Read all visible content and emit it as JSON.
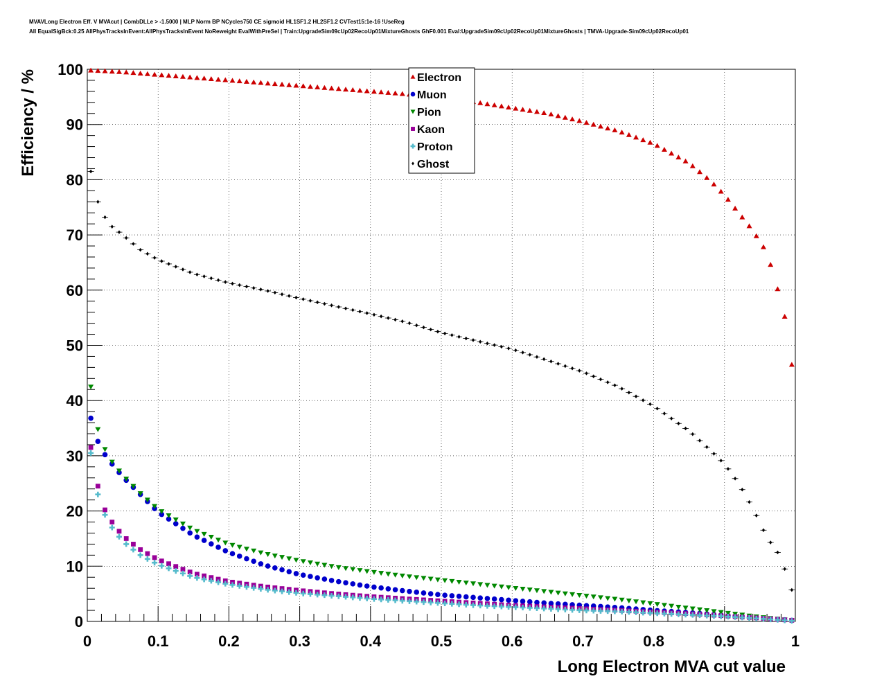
{
  "chart_data": {
    "type": "scatter",
    "title_lines": [
      "MVAVLong Electron Eff. V MVAcut | CombDLLe > -1.5000 | MLP Norm BP NCycles750 CE sigmoid HL1SF1.2 HL2SF1.2 CVTest15:1e-16 !UseReg",
      "All EqualSigBck:0.25 AllPhysTracksInEvent:AllPhysTracksInEvent NoReweight EvalWithPreSel | Train:UpgradeSim09cUp02RecoUp01MixtureGhosts GhF0.001 Eval:UpgradeSim09cUp02RecoUp01MixtureGhosts | TMVA-Upgrade-Sim09cUp02RecoUp01"
    ],
    "xlabel": "Long Electron MVA cut value",
    "ylabel": "Efficiency / %",
    "xlim": [
      0,
      1
    ],
    "ylim": [
      0,
      100
    ],
    "x_ticks": [
      "0",
      "0.1",
      "0.2",
      "0.3",
      "0.4",
      "0.5",
      "0.6",
      "0.7",
      "0.8",
      "0.9",
      "1"
    ],
    "y_ticks": [
      "0",
      "10",
      "20",
      "30",
      "40",
      "50",
      "60",
      "70",
      "80",
      "90",
      "100"
    ],
    "grid": true,
    "legend_position": "top-center",
    "x_step": 0.01,
    "series": [
      {
        "name": "Electron",
        "marker": "triangle-up",
        "color": "#cc0000",
        "anchors": [
          [
            0.005,
            99.8
          ],
          [
            0.05,
            99.5
          ],
          [
            0.1,
            99.0
          ],
          [
            0.15,
            98.5
          ],
          [
            0.2,
            98.0
          ],
          [
            0.25,
            97.5
          ],
          [
            0.3,
            97.0
          ],
          [
            0.35,
            96.5
          ],
          [
            0.4,
            96.0
          ],
          [
            0.45,
            95.5
          ],
          [
            0.5,
            94.8
          ],
          [
            0.55,
            94.0
          ],
          [
            0.6,
            93.0
          ],
          [
            0.65,
            92.0
          ],
          [
            0.7,
            90.5
          ],
          [
            0.75,
            88.8
          ],
          [
            0.8,
            86.5
          ],
          [
            0.85,
            83.0
          ],
          [
            0.88,
            79.8
          ],
          [
            0.9,
            77.2
          ],
          [
            0.92,
            74.0
          ],
          [
            0.94,
            70.8
          ],
          [
            0.96,
            66.8
          ],
          [
            0.975,
            60.2
          ],
          [
            0.985,
            55.2
          ],
          [
            0.995,
            46.5
          ]
        ]
      },
      {
        "name": "Muon",
        "marker": "circle",
        "color": "#0000cc",
        "anchors": [
          [
            0.005,
            36.8
          ],
          [
            0.015,
            32.6
          ],
          [
            0.025,
            30.2
          ],
          [
            0.035,
            28.5
          ],
          [
            0.05,
            26.2
          ],
          [
            0.075,
            23.0
          ],
          [
            0.1,
            19.8
          ],
          [
            0.15,
            15.6
          ],
          [
            0.2,
            12.5
          ],
          [
            0.25,
            10.2
          ],
          [
            0.3,
            8.5
          ],
          [
            0.35,
            7.3
          ],
          [
            0.4,
            6.3
          ],
          [
            0.45,
            5.5
          ],
          [
            0.5,
            4.8
          ],
          [
            0.55,
            4.3
          ],
          [
            0.6,
            3.8
          ],
          [
            0.65,
            3.3
          ],
          [
            0.7,
            2.9
          ],
          [
            0.75,
            2.5
          ],
          [
            0.8,
            2.0
          ],
          [
            0.85,
            1.6
          ],
          [
            0.9,
            1.1
          ],
          [
            0.95,
            0.6
          ],
          [
            0.995,
            0.2
          ]
        ]
      },
      {
        "name": "Pion",
        "marker": "triangle-down",
        "color": "#008800",
        "anchors": [
          [
            0.005,
            42.5
          ],
          [
            0.015,
            34.8
          ],
          [
            0.025,
            31.2
          ],
          [
            0.035,
            28.9
          ],
          [
            0.05,
            26.5
          ],
          [
            0.075,
            23.2
          ],
          [
            0.1,
            20.3
          ],
          [
            0.15,
            16.6
          ],
          [
            0.2,
            14.0
          ],
          [
            0.25,
            12.3
          ],
          [
            0.3,
            11.0
          ],
          [
            0.35,
            9.9
          ],
          [
            0.4,
            9.0
          ],
          [
            0.45,
            8.2
          ],
          [
            0.5,
            7.5
          ],
          [
            0.55,
            6.8
          ],
          [
            0.6,
            6.1
          ],
          [
            0.65,
            5.4
          ],
          [
            0.7,
            4.7
          ],
          [
            0.75,
            4.0
          ],
          [
            0.8,
            3.2
          ],
          [
            0.85,
            2.4
          ],
          [
            0.9,
            1.6
          ],
          [
            0.95,
            0.8
          ],
          [
            0.995,
            0.2
          ]
        ]
      },
      {
        "name": "Kaon",
        "marker": "square",
        "color": "#990099",
        "anchors": [
          [
            0.005,
            31.5
          ],
          [
            0.015,
            24.5
          ],
          [
            0.025,
            20.2
          ],
          [
            0.035,
            18.0
          ],
          [
            0.05,
            15.5
          ],
          [
            0.075,
            13.0
          ],
          [
            0.1,
            11.2
          ],
          [
            0.15,
            8.7
          ],
          [
            0.2,
            7.2
          ],
          [
            0.25,
            6.3
          ],
          [
            0.3,
            5.6
          ],
          [
            0.35,
            5.0
          ],
          [
            0.4,
            4.5
          ],
          [
            0.45,
            4.1
          ],
          [
            0.5,
            3.7
          ],
          [
            0.55,
            3.3
          ],
          [
            0.6,
            2.9
          ],
          [
            0.65,
            2.6
          ],
          [
            0.7,
            2.3
          ],
          [
            0.75,
            2.0
          ],
          [
            0.8,
            1.7
          ],
          [
            0.85,
            1.4
          ],
          [
            0.9,
            1.0
          ],
          [
            0.95,
            0.6
          ],
          [
            0.995,
            0.2
          ]
        ]
      },
      {
        "name": "Proton",
        "marker": "cross",
        "color": "#55bbcc",
        "anchors": [
          [
            0.005,
            30.5
          ],
          [
            0.015,
            23.0
          ],
          [
            0.025,
            19.3
          ],
          [
            0.035,
            17.0
          ],
          [
            0.05,
            14.5
          ],
          [
            0.075,
            12.0
          ],
          [
            0.1,
            10.3
          ],
          [
            0.15,
            8.0
          ],
          [
            0.2,
            6.7
          ],
          [
            0.25,
            5.8
          ],
          [
            0.3,
            5.1
          ],
          [
            0.35,
            4.6
          ],
          [
            0.4,
            4.1
          ],
          [
            0.45,
            3.7
          ],
          [
            0.5,
            3.3
          ],
          [
            0.55,
            2.9
          ],
          [
            0.6,
            2.6
          ],
          [
            0.65,
            2.3
          ],
          [
            0.7,
            2.0
          ],
          [
            0.75,
            1.8
          ],
          [
            0.8,
            1.5
          ],
          [
            0.85,
            1.2
          ],
          [
            0.9,
            0.9
          ],
          [
            0.95,
            0.5
          ],
          [
            0.995,
            0.1
          ]
        ]
      },
      {
        "name": "Ghost",
        "marker": "diamond",
        "color": "#000000",
        "anchors": [
          [
            0.005,
            81.5
          ],
          [
            0.015,
            76.0
          ],
          [
            0.025,
            73.2
          ],
          [
            0.035,
            71.5
          ],
          [
            0.05,
            70.0
          ],
          [
            0.075,
            67.3
          ],
          [
            0.1,
            65.5
          ],
          [
            0.15,
            63.0
          ],
          [
            0.2,
            61.3
          ],
          [
            0.25,
            60.0
          ],
          [
            0.3,
            58.5
          ],
          [
            0.35,
            57.1
          ],
          [
            0.4,
            55.7
          ],
          [
            0.45,
            54.2
          ],
          [
            0.5,
            52.3
          ],
          [
            0.55,
            50.8
          ],
          [
            0.6,
            49.3
          ],
          [
            0.65,
            47.3
          ],
          [
            0.7,
            45.2
          ],
          [
            0.75,
            42.5
          ],
          [
            0.8,
            39.0
          ],
          [
            0.85,
            34.5
          ],
          [
            0.88,
            31.0
          ],
          [
            0.9,
            28.5
          ],
          [
            0.92,
            25.0
          ],
          [
            0.94,
            20.5
          ],
          [
            0.96,
            15.2
          ],
          [
            0.975,
            12.5
          ],
          [
            0.985,
            9.5
          ],
          [
            0.995,
            5.7
          ]
        ]
      }
    ]
  }
}
